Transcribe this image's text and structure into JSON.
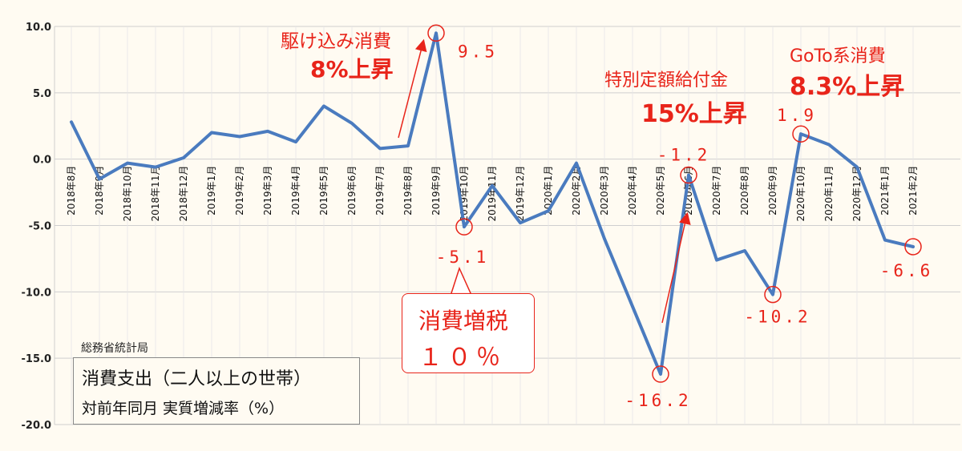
{
  "chart_data": {
    "type": "line",
    "title": "",
    "xlabel": "",
    "ylabel": "",
    "ylim": [
      -20,
      10
    ],
    "yticks": [
      "10.0",
      "5.0",
      "0.0",
      "-5.0",
      "-10.0",
      "-15.0",
      "-20.0"
    ],
    "grid": true,
    "categories": [
      "2018年8月",
      "2018年9月",
      "2018年10月",
      "2018年11月",
      "2018年12月",
      "2019年1月",
      "2019年2月",
      "2019年3月",
      "2019年4月",
      "2019年5月",
      "2019年6月",
      "2019年7月",
      "2019年8月",
      "2019年9月",
      "2019年10月",
      "2019年11月",
      "2019年12月",
      "2020年1月",
      "2020年2月",
      "2020年3月",
      "2020年4月",
      "2020年5月",
      "2020年6月",
      "2020年7月",
      "2020年8月",
      "2020年9月",
      "2020年10月",
      "2020年11月",
      "2020年12月",
      "2021年1月",
      "2021年2月"
    ],
    "series": [
      {
        "values": [
          2.8,
          -1.5,
          -0.3,
          -0.6,
          0.1,
          2.0,
          1.7,
          2.1,
          1.3,
          4.0,
          2.7,
          0.8,
          1.0,
          9.5,
          -5.1,
          -2.0,
          -4.8,
          -3.9,
          -0.3,
          -6.0,
          -11.1,
          -16.2,
          -1.2,
          -7.6,
          -6.9,
          -10.2,
          1.9,
          1.1,
          -0.6,
          -6.1,
          -6.6
        ],
        "color": "#4a7bbf"
      }
    ],
    "highlight_points": [
      {
        "index": 13,
        "label": "9.5"
      },
      {
        "index": 14,
        "label": "-5.1"
      },
      {
        "index": 21,
        "label": "-16.2"
      },
      {
        "index": 22,
        "label": "-1.2"
      },
      {
        "index": 25,
        "label": "-10.2"
      },
      {
        "index": 26,
        "label": "1.9"
      },
      {
        "index": 30,
        "label": "-6.6"
      }
    ],
    "annotations": {
      "rush_title": "駆け込み消費",
      "rush_value": "8%上昇",
      "benefit_title": "特別定額給付金",
      "benefit_value": "15%上昇",
      "goto_title": "GoTo系消費",
      "goto_value": "8.3%上昇"
    }
  },
  "callout": {
    "line1": "消費増税",
    "line2": "１０％"
  },
  "info": {
    "source": "総務省統計局",
    "line1": "消費支出（二人以上の世帯）",
    "line2": "対前年同月 実質増減率（%）"
  },
  "colors": {
    "line": "#4a7bbf",
    "accent": "#e8241a",
    "background": "#fffbf2"
  }
}
